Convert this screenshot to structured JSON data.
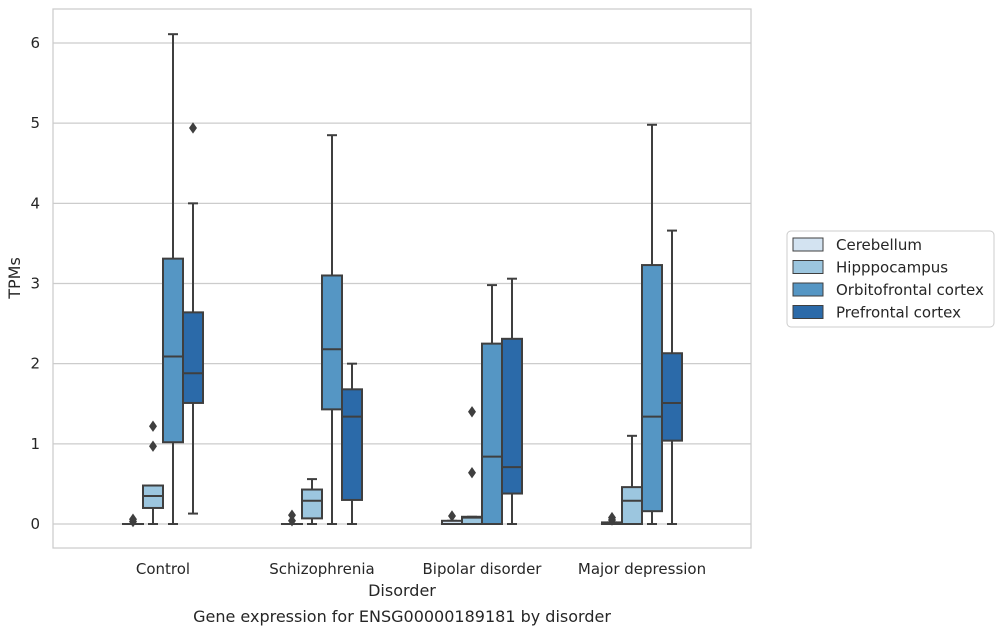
{
  "chart_data": {
    "type": "boxplot",
    "caption": "Gene expression for ENSG00000189181 by disorder",
    "xlabel": "Disorder",
    "ylabel": "TPMs",
    "ylim": [
      -0.3,
      6.4
    ],
    "yticks": [
      0,
      1,
      2,
      3,
      4,
      5,
      6
    ],
    "grid": true,
    "legend_position": "right",
    "categories": [
      "Control",
      "Schizophrenia",
      "Bipolar disorder",
      "Major depression"
    ],
    "series": [
      {
        "name": "Cerebellum",
        "color": "#d3e3f1",
        "boxes": [
          {
            "whisker_low": 0,
            "q1": 0,
            "median": 0,
            "q3": 0,
            "whisker_high": 0,
            "outliers": [
              0.03,
              0.06
            ]
          },
          {
            "whisker_low": 0,
            "q1": 0,
            "median": 0,
            "q3": 0,
            "whisker_high": 0,
            "outliers": [
              0.04,
              0.11
            ]
          },
          {
            "whisker_low": 0,
            "q1": 0,
            "median": 0,
            "q3": 0.04,
            "whisker_high": 0.04,
            "outliers": [
              0.1
            ]
          },
          {
            "whisker_low": 0,
            "q1": 0,
            "median": 0,
            "q3": 0.02,
            "whisker_high": 0.02,
            "outliers": [
              0.05,
              0.08
            ]
          }
        ]
      },
      {
        "name": "Hipppocampus",
        "color": "#9cc6df",
        "boxes": [
          {
            "whisker_low": 0,
            "q1": 0.2,
            "median": 0.35,
            "q3": 0.48,
            "whisker_high": 0.48,
            "outliers": [
              0.97,
              1.22
            ]
          },
          {
            "whisker_low": 0,
            "q1": 0.07,
            "median": 0.29,
            "q3": 0.43,
            "whisker_high": 0.56,
            "outliers": []
          },
          {
            "whisker_low": 0,
            "q1": 0,
            "median": 0.08,
            "q3": 0.09,
            "whisker_high": 0.09,
            "outliers": [
              0.64,
              1.4
            ]
          },
          {
            "whisker_low": 0,
            "q1": 0,
            "median": 0.29,
            "q3": 0.46,
            "whisker_high": 1.1,
            "outliers": []
          }
        ]
      },
      {
        "name": "Orbitofrontal cortex",
        "color": "#5596c4",
        "boxes": [
          {
            "whisker_low": 0,
            "q1": 1.02,
            "median": 2.09,
            "q3": 3.31,
            "whisker_high": 6.11,
            "outliers": []
          },
          {
            "whisker_low": 0,
            "q1": 1.43,
            "median": 2.18,
            "q3": 3.1,
            "whisker_high": 4.85,
            "outliers": []
          },
          {
            "whisker_low": 0,
            "q1": 0,
            "median": 0.84,
            "q3": 2.25,
            "whisker_high": 2.98,
            "outliers": []
          },
          {
            "whisker_low": 0,
            "q1": 0.16,
            "median": 1.34,
            "q3": 3.23,
            "whisker_high": 4.98,
            "outliers": []
          }
        ]
      },
      {
        "name": "Prefrontal cortex",
        "color": "#2b6aa9",
        "boxes": [
          {
            "whisker_low": 0.13,
            "q1": 1.51,
            "median": 1.88,
            "q3": 2.64,
            "whisker_high": 4.0,
            "outliers": [
              4.94
            ]
          },
          {
            "whisker_low": 0,
            "q1": 0.3,
            "median": 1.34,
            "q3": 1.68,
            "whisker_high": 2.0,
            "outliers": []
          },
          {
            "whisker_low": 0,
            "q1": 0.38,
            "median": 0.71,
            "q3": 2.31,
            "whisker_high": 3.06,
            "outliers": []
          },
          {
            "whisker_low": 0,
            "q1": 1.04,
            "median": 1.51,
            "q3": 2.13,
            "whisker_high": 3.66,
            "outliers": []
          }
        ]
      }
    ]
  }
}
